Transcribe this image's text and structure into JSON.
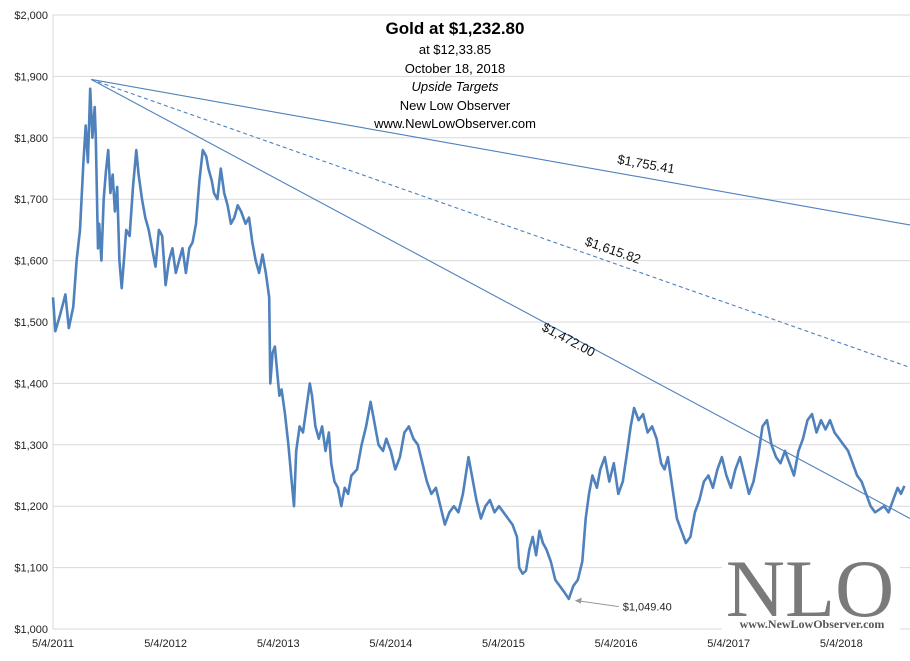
{
  "chart_data": {
    "type": "line",
    "title": "Gold at $1,232.80",
    "subtitle_lines": [
      "at $12,33.85",
      "October 18, 2018",
      "Upside Targets",
      "New Low Observer",
      "www.NewLowObserver.com"
    ],
    "ylim": [
      1000,
      2000
    ],
    "yticks": [
      {
        "value": 1000,
        "label": "$1,000"
      },
      {
        "value": 1100,
        "label": "$1,100"
      },
      {
        "value": 1200,
        "label": "$1,200"
      },
      {
        "value": 1300,
        "label": "$1,300"
      },
      {
        "value": 1400,
        "label": "$1,400"
      },
      {
        "value": 1500,
        "label": "$1,500"
      },
      {
        "value": 1600,
        "label": "$1,600"
      },
      {
        "value": 1700,
        "label": "$1,700"
      },
      {
        "value": 1800,
        "label": "$1,800"
      },
      {
        "value": 1900,
        "label": "$1,900"
      },
      {
        "value": 2000,
        "label": "$2,000"
      }
    ],
    "xlim": [
      2011.34,
      2018.95
    ],
    "xticks": [
      {
        "value": 2011.34,
        "label": "5/4/2011"
      },
      {
        "value": 2012.34,
        "label": "5/4/2012"
      },
      {
        "value": 2013.34,
        "label": "5/4/2013"
      },
      {
        "value": 2014.34,
        "label": "5/4/2014"
      },
      {
        "value": 2015.34,
        "label": "5/4/2015"
      },
      {
        "value": 2016.34,
        "label": "5/4/2016"
      },
      {
        "value": 2017.34,
        "label": "5/4/2017"
      },
      {
        "value": 2018.34,
        "label": "5/4/2018"
      }
    ],
    "series": [
      {
        "name": "Gold",
        "color": "#4f81bd",
        "points": [
          [
            2011.34,
            1540
          ],
          [
            2011.36,
            1485
          ],
          [
            2011.4,
            1510
          ],
          [
            2011.45,
            1545
          ],
          [
            2011.48,
            1490
          ],
          [
            2011.52,
            1525
          ],
          [
            2011.55,
            1600
          ],
          [
            2011.58,
            1650
          ],
          [
            2011.61,
            1760
          ],
          [
            2011.63,
            1820
          ],
          [
            2011.65,
            1760
          ],
          [
            2011.67,
            1880
          ],
          [
            2011.69,
            1800
          ],
          [
            2011.71,
            1850
          ],
          [
            2011.72,
            1800
          ],
          [
            2011.74,
            1620
          ],
          [
            2011.75,
            1660
          ],
          [
            2011.77,
            1600
          ],
          [
            2011.79,
            1700
          ],
          [
            2011.81,
            1745
          ],
          [
            2011.83,
            1780
          ],
          [
            2011.85,
            1710
          ],
          [
            2011.87,
            1740
          ],
          [
            2011.89,
            1680
          ],
          [
            2011.91,
            1720
          ],
          [
            2011.93,
            1600
          ],
          [
            2011.95,
            1555
          ],
          [
            2011.97,
            1600
          ],
          [
            2011.99,
            1650
          ],
          [
            2012.02,
            1640
          ],
          [
            2012.05,
            1720
          ],
          [
            2012.08,
            1780
          ],
          [
            2012.1,
            1740
          ],
          [
            2012.13,
            1700
          ],
          [
            2012.16,
            1670
          ],
          [
            2012.19,
            1650
          ],
          [
            2012.22,
            1620
          ],
          [
            2012.25,
            1590
          ],
          [
            2012.28,
            1650
          ],
          [
            2012.31,
            1640
          ],
          [
            2012.34,
            1560
          ],
          [
            2012.37,
            1600
          ],
          [
            2012.4,
            1620
          ],
          [
            2012.43,
            1580
          ],
          [
            2012.46,
            1600
          ],
          [
            2012.49,
            1620
          ],
          [
            2012.52,
            1580
          ],
          [
            2012.55,
            1620
          ],
          [
            2012.58,
            1630
          ],
          [
            2012.61,
            1660
          ],
          [
            2012.64,
            1730
          ],
          [
            2012.67,
            1780
          ],
          [
            2012.7,
            1770
          ],
          [
            2012.72,
            1750
          ],
          [
            2012.75,
            1730
          ],
          [
            2012.77,
            1710
          ],
          [
            2012.8,
            1700
          ],
          [
            2012.83,
            1750
          ],
          [
            2012.86,
            1710
          ],
          [
            2012.89,
            1690
          ],
          [
            2012.92,
            1660
          ],
          [
            2012.95,
            1670
          ],
          [
            2012.98,
            1690
          ],
          [
            2013.01,
            1680
          ],
          [
            2013.05,
            1660
          ],
          [
            2013.08,
            1670
          ],
          [
            2013.11,
            1630
          ],
          [
            2013.14,
            1600
          ],
          [
            2013.17,
            1580
          ],
          [
            2013.2,
            1610
          ],
          [
            2013.23,
            1580
          ],
          [
            2013.26,
            1540
          ],
          [
            2013.27,
            1400
          ],
          [
            2013.29,
            1450
          ],
          [
            2013.31,
            1460
          ],
          [
            2013.33,
            1420
          ],
          [
            2013.35,
            1380
          ],
          [
            2013.37,
            1390
          ],
          [
            2013.4,
            1350
          ],
          [
            2013.43,
            1300
          ],
          [
            2013.46,
            1240
          ],
          [
            2013.48,
            1200
          ],
          [
            2013.5,
            1290
          ],
          [
            2013.53,
            1330
          ],
          [
            2013.56,
            1320
          ],
          [
            2013.59,
            1360
          ],
          [
            2013.62,
            1400
          ],
          [
            2013.64,
            1380
          ],
          [
            2013.67,
            1330
          ],
          [
            2013.7,
            1310
          ],
          [
            2013.73,
            1330
          ],
          [
            2013.76,
            1290
          ],
          [
            2013.79,
            1320
          ],
          [
            2013.81,
            1270
          ],
          [
            2013.84,
            1240
          ],
          [
            2013.87,
            1230
          ],
          [
            2013.9,
            1200
          ],
          [
            2013.93,
            1230
          ],
          [
            2013.96,
            1220
          ],
          [
            2013.99,
            1250
          ],
          [
            2014.04,
            1260
          ],
          [
            2014.08,
            1300
          ],
          [
            2014.12,
            1330
          ],
          [
            2014.16,
            1370
          ],
          [
            2014.19,
            1340
          ],
          [
            2014.23,
            1300
          ],
          [
            2014.27,
            1290
          ],
          [
            2014.3,
            1310
          ],
          [
            2014.34,
            1290
          ],
          [
            2014.38,
            1260
          ],
          [
            2014.42,
            1280
          ],
          [
            2014.46,
            1320
          ],
          [
            2014.5,
            1330
          ],
          [
            2014.54,
            1310
          ],
          [
            2014.58,
            1300
          ],
          [
            2014.62,
            1270
          ],
          [
            2014.66,
            1240
          ],
          [
            2014.7,
            1220
          ],
          [
            2014.74,
            1230
          ],
          [
            2014.78,
            1200
          ],
          [
            2014.82,
            1170
          ],
          [
            2014.86,
            1190
          ],
          [
            2014.9,
            1200
          ],
          [
            2014.94,
            1190
          ],
          [
            2014.98,
            1220
          ],
          [
            2015.03,
            1280
          ],
          [
            2015.06,
            1250
          ],
          [
            2015.1,
            1210
          ],
          [
            2015.14,
            1180
          ],
          [
            2015.18,
            1200
          ],
          [
            2015.22,
            1210
          ],
          [
            2015.26,
            1190
          ],
          [
            2015.3,
            1200
          ],
          [
            2015.34,
            1190
          ],
          [
            2015.38,
            1180
          ],
          [
            2015.42,
            1170
          ],
          [
            2015.46,
            1150
          ],
          [
            2015.48,
            1100
          ],
          [
            2015.51,
            1090
          ],
          [
            2015.54,
            1095
          ],
          [
            2015.57,
            1130
          ],
          [
            2015.6,
            1150
          ],
          [
            2015.63,
            1120
          ],
          [
            2015.66,
            1160
          ],
          [
            2015.69,
            1140
          ],
          [
            2015.72,
            1130
          ],
          [
            2015.76,
            1110
          ],
          [
            2015.8,
            1080
          ],
          [
            2015.84,
            1070
          ],
          [
            2015.88,
            1060
          ],
          [
            2015.92,
            1049
          ],
          [
            2015.96,
            1070
          ],
          [
            2016.0,
            1080
          ],
          [
            2016.04,
            1110
          ],
          [
            2016.07,
            1180
          ],
          [
            2016.1,
            1220
          ],
          [
            2016.13,
            1250
          ],
          [
            2016.17,
            1230
          ],
          [
            2016.2,
            1260
          ],
          [
            2016.24,
            1280
          ],
          [
            2016.28,
            1240
          ],
          [
            2016.32,
            1270
          ],
          [
            2016.36,
            1220
          ],
          [
            2016.4,
            1240
          ],
          [
            2016.44,
            1290
          ],
          [
            2016.47,
            1330
          ],
          [
            2016.5,
            1360
          ],
          [
            2016.54,
            1340
          ],
          [
            2016.58,
            1350
          ],
          [
            2016.62,
            1320
          ],
          [
            2016.66,
            1330
          ],
          [
            2016.7,
            1310
          ],
          [
            2016.74,
            1270
          ],
          [
            2016.77,
            1260
          ],
          [
            2016.8,
            1280
          ],
          [
            2016.84,
            1230
          ],
          [
            2016.88,
            1180
          ],
          [
            2016.92,
            1160
          ],
          [
            2016.96,
            1140
          ],
          [
            2017.0,
            1150
          ],
          [
            2017.04,
            1190
          ],
          [
            2017.08,
            1210
          ],
          [
            2017.12,
            1240
          ],
          [
            2017.16,
            1250
          ],
          [
            2017.2,
            1230
          ],
          [
            2017.24,
            1260
          ],
          [
            2017.28,
            1280
          ],
          [
            2017.32,
            1250
          ],
          [
            2017.36,
            1230
          ],
          [
            2017.4,
            1260
          ],
          [
            2017.44,
            1280
          ],
          [
            2017.48,
            1250
          ],
          [
            2017.52,
            1220
          ],
          [
            2017.56,
            1240
          ],
          [
            2017.6,
            1280
          ],
          [
            2017.64,
            1330
          ],
          [
            2017.68,
            1340
          ],
          [
            2017.72,
            1300
          ],
          [
            2017.76,
            1280
          ],
          [
            2017.8,
            1270
          ],
          [
            2017.84,
            1290
          ],
          [
            2017.88,
            1270
          ],
          [
            2017.92,
            1250
          ],
          [
            2017.96,
            1290
          ],
          [
            2018.0,
            1310
          ],
          [
            2018.04,
            1340
          ],
          [
            2018.08,
            1350
          ],
          [
            2018.12,
            1320
          ],
          [
            2018.16,
            1340
          ],
          [
            2018.2,
            1325
          ],
          [
            2018.24,
            1340
          ],
          [
            2018.28,
            1320
          ],
          [
            2018.32,
            1310
          ],
          [
            2018.36,
            1300
          ],
          [
            2018.4,
            1290
          ],
          [
            2018.44,
            1270
          ],
          [
            2018.48,
            1250
          ],
          [
            2018.52,
            1240
          ],
          [
            2018.56,
            1220
          ],
          [
            2018.6,
            1200
          ],
          [
            2018.64,
            1190
          ],
          [
            2018.68,
            1195
          ],
          [
            2018.72,
            1200
          ],
          [
            2018.76,
            1190
          ],
          [
            2018.8,
            1210
          ],
          [
            2018.84,
            1230
          ],
          [
            2018.87,
            1220
          ],
          [
            2018.9,
            1233
          ]
        ]
      }
    ],
    "trendlines": [
      {
        "label": "$1,755.41",
        "style": "solid",
        "from": [
          2011.68,
          1895
        ],
        "to": [
          2018.95,
          1658
        ],
        "label_at": [
          2016.6,
          1750
        ],
        "color": "#4f81bd"
      },
      {
        "label": "$1,615.82",
        "style": "dashed",
        "from": [
          2011.68,
          1895
        ],
        "to": [
          2018.95,
          1426
        ],
        "label_at": [
          2016.3,
          1610
        ],
        "color": "#4f81bd"
      },
      {
        "label": "$1,472.00",
        "style": "solid",
        "from": [
          2011.68,
          1895
        ],
        "to": [
          2018.95,
          1180
        ],
        "label_at": [
          2015.9,
          1465
        ],
        "color": "#4f81bd"
      }
    ],
    "annotation": {
      "label": "$1,049.40",
      "x": 2015.92,
      "y": 1049.4
    }
  },
  "watermark": {
    "big_text": "NLO",
    "small_text": "www.NewLowObserver.com"
  }
}
